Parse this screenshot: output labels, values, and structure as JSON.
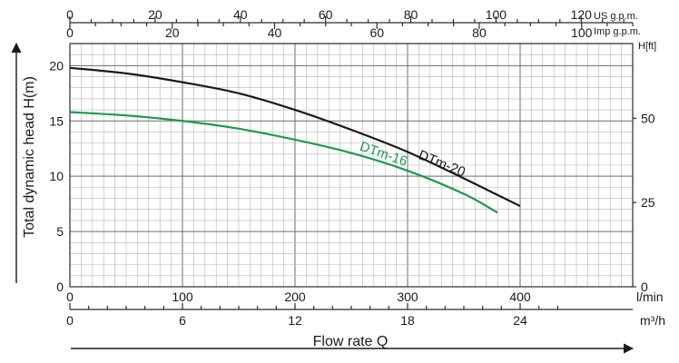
{
  "chart_data": {
    "type": "line",
    "xlabel": "Flow rate Q",
    "ylabel": "Total dynamic head H(m)",
    "x_unit": "l/min",
    "x": [
      0,
      50,
      100,
      150,
      200,
      250,
      300,
      350,
      380,
      400
    ],
    "xlim": [
      0,
      500
    ],
    "ylim": [
      0,
      22
    ],
    "series": [
      {
        "name": "DTm-20",
        "color": "#1a1a1a",
        "x": [
          0,
          50,
          100,
          150,
          200,
          250,
          300,
          350,
          380,
          400
        ],
        "y": [
          19.8,
          19.3,
          18.5,
          17.5,
          16.0,
          14.2,
          12.2,
          9.8,
          8.3,
          7.3
        ]
      },
      {
        "name": "DTm-16",
        "color": "#1f9a4a",
        "x": [
          0,
          50,
          100,
          150,
          200,
          250,
          300,
          350,
          380
        ],
        "y": [
          15.8,
          15.5,
          15.0,
          14.3,
          13.3,
          12.1,
          10.5,
          8.4,
          6.7
        ]
      }
    ],
    "axes": {
      "left": {
        "ticks": [
          0,
          5,
          10,
          15,
          20
        ]
      },
      "bottom_lmin": {
        "ticks": [
          0,
          100,
          200,
          300,
          400
        ],
        "unit": "l/min"
      },
      "bottom_m3h": {
        "ticks": [
          0,
          6,
          12,
          18,
          24
        ],
        "unit": "m³/h",
        "per_lmin": 0.06
      },
      "top_us": {
        "ticks": [
          0,
          20,
          40,
          60,
          80,
          100,
          120
        ],
        "unit": "US g.p.m.",
        "per_lmin": 0.264172
      },
      "top_imp": {
        "ticks": [
          0,
          20,
          40,
          60,
          80,
          100
        ],
        "unit": "Imp g.p.m.",
        "per_lmin": 0.219969
      },
      "right_ft": {
        "ticks": [
          0,
          25,
          50
        ],
        "unit": "H[ft]",
        "per_m": 3.28084
      }
    },
    "grid": true,
    "legend": "labels on curves"
  }
}
